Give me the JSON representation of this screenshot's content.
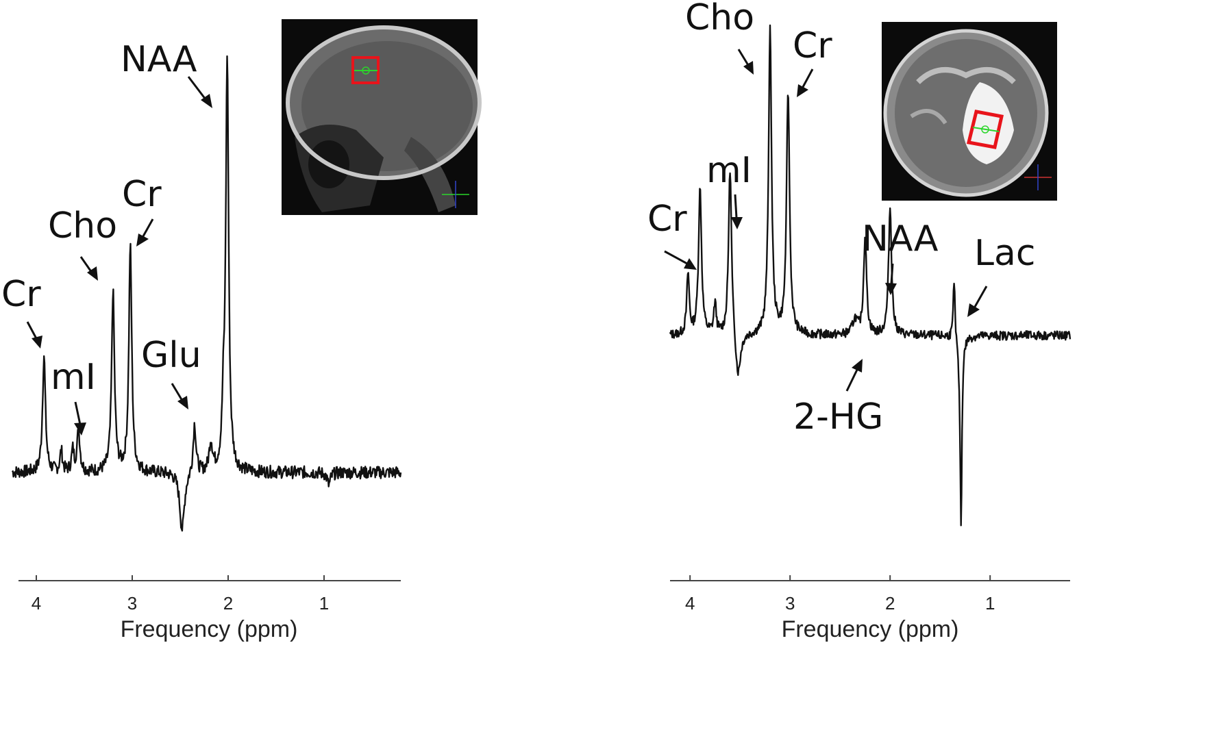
{
  "chart_data": [
    {
      "type": "line",
      "title": "",
      "xlabel": "Frequency (ppm)",
      "ylabel": "",
      "x_direction": "reversed",
      "xlim": [
        4.25,
        0.2
      ],
      "ylim": [
        0,
        1
      ],
      "x_ticks": [
        4,
        3,
        2,
        1
      ],
      "grid": false,
      "inset": "sagittal MRI with red voxel box, top-right",
      "peaks": [
        {
          "name": "Cr",
          "x": 3.92,
          "y": 0.28
        },
        {
          "name": "mI",
          "x": 3.56,
          "y": 0.1
        },
        {
          "name": "Cho",
          "x": 3.2,
          "y": 0.43
        },
        {
          "name": "Cr",
          "x": 3.02,
          "y": 0.54
        },
        {
          "name": "Glu",
          "x": 2.35,
          "y": 0.12
        },
        {
          "name": "NAA",
          "x": 2.01,
          "y": 0.99
        }
      ],
      "annotations": [
        {
          "text": "Cr"
        },
        {
          "text": "mI"
        },
        {
          "text": "Cho"
        },
        {
          "text": "Cr"
        },
        {
          "text": "Glu"
        },
        {
          "text": "NAA"
        }
      ]
    },
    {
      "type": "line",
      "title": "",
      "xlabel": "Frequency (ppm)",
      "ylabel": "",
      "x_direction": "reversed",
      "xlim": [
        4.2,
        0.2
      ],
      "ylim": [
        0,
        1
      ],
      "x_ticks": [
        4,
        3,
        2,
        1
      ],
      "grid": false,
      "inset": "coronal MRI with red voxel box over bright lesion, top-right",
      "peaks": [
        {
          "name": "Cr",
          "x": 3.9,
          "y": 0.48
        },
        {
          "name": "mI",
          "x": 3.6,
          "y": 0.56
        },
        {
          "name": "Cho",
          "x": 3.2,
          "y": 1.0
        },
        {
          "name": "Cr",
          "x": 3.02,
          "y": 0.8
        },
        {
          "name": "2-HG",
          "x": 2.25,
          "y": 0.32
        },
        {
          "name": "NAA",
          "x": 2.0,
          "y": 0.42
        },
        {
          "name": "Lac",
          "x": 1.3,
          "y": -0.1
        }
      ],
      "annotations": [
        {
          "text": "Cho"
        },
        {
          "text": "Cr"
        },
        {
          "text": "mI"
        },
        {
          "text": "Cr"
        },
        {
          "text": "NAA"
        },
        {
          "text": "Lac"
        },
        {
          "text": "2-HG"
        }
      ]
    }
  ],
  "colors": {
    "trace": "#111111",
    "voxel_box": "#e8141b",
    "voxel_marker": "#2bd62b",
    "mri_background": "#0b0b0b"
  }
}
